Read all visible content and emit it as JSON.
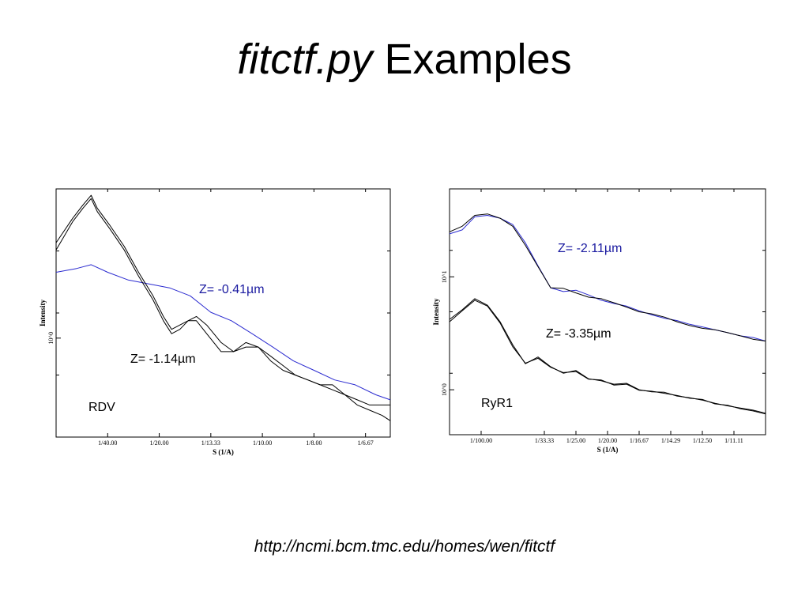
{
  "slide": {
    "title_italic": "fitctf.py",
    "title_rest": "Examples",
    "url": "http://ncmi.bcm.tmc.edu/homes/wen/fitctf"
  },
  "colors": {
    "fit_blue": "#2b2bd0",
    "data_black": "#000000",
    "label_blue": "#1a1aa0"
  },
  "chart_data": [
    {
      "type": "line",
      "id": "rdv",
      "xlabel": "S (1/A)",
      "ylabel": "Intensity",
      "x_ticks": [
        "1/40.00",
        "1/20.00",
        "1/13.33",
        "1/10.00",
        "1/8.00",
        "1/6.67"
      ],
      "x_tick_values": [
        0.025,
        0.05,
        0.075,
        0.1,
        0.125,
        0.15
      ],
      "xlim": [
        0.0,
        0.162
      ],
      "y_scale": "log",
      "y_ticks": [
        "10^0"
      ],
      "y_tick_values": [
        1.0
      ],
      "ylim": [
        0.8,
        1.4
      ],
      "annotations": [
        {
          "text": "Z= -0.41µm",
          "color": "#1a1aa0"
        },
        {
          "text": "Z= -1.14µm",
          "color": "#000000"
        },
        {
          "text": "RDV",
          "color": "#000000"
        }
      ],
      "series": [
        {
          "color": "#2b2bd0",
          "x": [
            0.0,
            0.01,
            0.017,
            0.025,
            0.035,
            0.045,
            0.055,
            0.065,
            0.075,
            0.085,
            0.095,
            0.105,
            0.115,
            0.125,
            0.135,
            0.145,
            0.155,
            0.162
          ],
          "y": [
            1.16,
            1.17,
            1.18,
            1.16,
            1.14,
            1.13,
            1.12,
            1.1,
            1.06,
            1.04,
            1.01,
            0.98,
            0.95,
            0.93,
            0.91,
            0.9,
            0.88,
            0.87
          ]
        },
        {
          "color": "#000000",
          "x": [
            0.0,
            0.008,
            0.013,
            0.017,
            0.02,
            0.026,
            0.033,
            0.04,
            0.047,
            0.052,
            0.056,
            0.06,
            0.064,
            0.068,
            0.073,
            0.08,
            0.086,
            0.092,
            0.098,
            0.104,
            0.11,
            0.116,
            0.122,
            0.128,
            0.134,
            0.14,
            0.146,
            0.152,
            0.158,
            0.162
          ],
          "y": [
            1.24,
            1.31,
            1.35,
            1.38,
            1.34,
            1.29,
            1.23,
            1.16,
            1.1,
            1.05,
            1.02,
            1.03,
            1.04,
            1.05,
            1.03,
            0.99,
            0.97,
            0.98,
            0.98,
            0.96,
            0.94,
            0.92,
            0.91,
            0.9,
            0.9,
            0.88,
            0.86,
            0.85,
            0.84,
            0.83
          ]
        },
        {
          "color": "#000000",
          "x": [
            0.0,
            0.008,
            0.013,
            0.017,
            0.02,
            0.026,
            0.033,
            0.04,
            0.047,
            0.052,
            0.056,
            0.06,
            0.064,
            0.068,
            0.073,
            0.08,
            0.086,
            0.092,
            0.098,
            0.104,
            0.11,
            0.116,
            0.122,
            0.128,
            0.134,
            0.14,
            0.146,
            0.152,
            0.158,
            0.162
          ],
          "y": [
            1.22,
            1.3,
            1.34,
            1.37,
            1.33,
            1.28,
            1.22,
            1.15,
            1.09,
            1.04,
            1.01,
            1.02,
            1.04,
            1.04,
            1.01,
            0.97,
            0.97,
            0.99,
            0.98,
            0.95,
            0.93,
            0.92,
            0.91,
            0.9,
            0.89,
            0.88,
            0.87,
            0.86,
            0.86,
            0.86
          ]
        }
      ]
    },
    {
      "type": "line",
      "id": "ryr1",
      "xlabel": "S (1/A)",
      "ylabel": "Intensity",
      "x_ticks": [
        "1/100.00",
        "1/33.33",
        "1/25.00",
        "1/20.00",
        "1/16.67",
        "1/14.29",
        "1/12.50",
        "1/11.11"
      ],
      "x_tick_values": [
        0.01,
        0.03,
        0.04,
        0.05,
        0.06,
        0.07,
        0.08,
        0.09
      ],
      "xlim": [
        0.0,
        0.1
      ],
      "y_scale": "log",
      "y_ticks": [
        "10^0",
        "10^1"
      ],
      "y_tick_values": [
        1,
        10
      ],
      "ylim": [
        0.4,
        60
      ],
      "annotations": [
        {
          "text": "Z= -2.11µm",
          "color": "#1a1aa0"
        },
        {
          "text": "Z= -3.35µm",
          "color": "#000000"
        },
        {
          "text": "RyR1",
          "color": "#000000"
        }
      ],
      "series": [
        {
          "color": "#2b2bd0",
          "x": [
            0.0,
            0.004,
            0.008,
            0.012,
            0.016,
            0.02,
            0.024,
            0.028,
            0.032,
            0.036,
            0.04,
            0.044,
            0.048,
            0.052,
            0.056,
            0.06,
            0.064,
            0.068,
            0.072,
            0.076,
            0.08,
            0.084,
            0.088,
            0.092,
            0.096,
            0.1
          ],
          "y": [
            24,
            26,
            34,
            35,
            33,
            29,
            20,
            12.5,
            8.0,
            7.4,
            7.6,
            6.9,
            6.2,
            5.8,
            5.5,
            5.0,
            4.6,
            4.3,
            4.1,
            3.8,
            3.6,
            3.4,
            3.2,
            3.0,
            2.9,
            2.7
          ]
        },
        {
          "color": "#000000",
          "x": [
            0.0,
            0.004,
            0.008,
            0.012,
            0.016,
            0.02,
            0.024,
            0.028,
            0.032,
            0.036,
            0.04,
            0.044,
            0.048,
            0.052,
            0.056,
            0.06,
            0.064,
            0.068,
            0.072,
            0.076,
            0.08,
            0.084,
            0.088,
            0.092,
            0.096,
            0.1
          ],
          "y": [
            25,
            28,
            35,
            36,
            33,
            28,
            19,
            12.3,
            8.0,
            7.9,
            7.2,
            6.6,
            6.4,
            5.9,
            5.4,
            4.9,
            4.7,
            4.4,
            4.0,
            3.7,
            3.5,
            3.4,
            3.2,
            3.0,
            2.8,
            2.7
          ]
        },
        {
          "color": "#000000",
          "x": [
            0.0,
            0.004,
            0.008,
            0.012,
            0.016,
            0.02,
            0.024,
            0.028,
            0.032,
            0.036,
            0.04,
            0.044,
            0.048,
            0.052,
            0.056,
            0.06,
            0.064,
            0.068,
            0.072,
            0.076,
            0.08,
            0.084,
            0.088,
            0.092,
            0.096,
            0.1
          ],
          "y": [
            4.2,
            5.1,
            6.4,
            5.6,
            4.0,
            2.5,
            1.7,
            1.95,
            1.6,
            1.4,
            1.48,
            1.25,
            1.2,
            1.12,
            1.14,
            1.0,
            0.96,
            0.95,
            0.88,
            0.85,
            0.81,
            0.76,
            0.72,
            0.69,
            0.66,
            0.62
          ]
        },
        {
          "color": "#000000",
          "x": [
            0.0,
            0.004,
            0.008,
            0.012,
            0.016,
            0.02,
            0.024,
            0.028,
            0.032,
            0.036,
            0.04,
            0.044,
            0.048,
            0.052,
            0.056,
            0.06,
            0.064,
            0.068,
            0.072,
            0.076,
            0.08,
            0.084,
            0.088,
            0.092,
            0.096,
            0.1
          ],
          "y": [
            4.0,
            5.0,
            6.2,
            5.5,
            3.9,
            2.4,
            1.72,
            1.9,
            1.58,
            1.42,
            1.45,
            1.24,
            1.22,
            1.1,
            1.12,
            0.99,
            0.97,
            0.93,
            0.89,
            0.84,
            0.82,
            0.75,
            0.73,
            0.68,
            0.65,
            0.61
          ]
        }
      ]
    }
  ]
}
